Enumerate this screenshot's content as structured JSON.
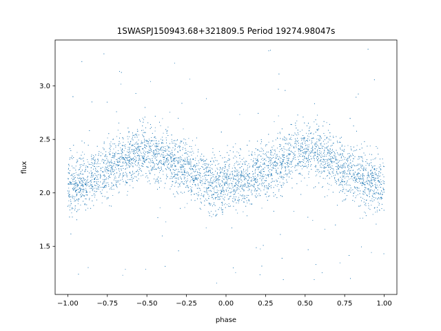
{
  "chart_data": {
    "type": "scatter",
    "title": "1SWASPJ150943.68+321809.5 Period 19274.98047s",
    "xlabel": "phase",
    "ylabel": "flux",
    "xlim": [
      -1.08,
      1.08
    ],
    "ylim": [
      1.05,
      3.43
    ],
    "xticks": [
      -1.0,
      -0.75,
      -0.5,
      -0.25,
      0.0,
      0.25,
      0.5,
      0.75,
      1.0
    ],
    "xtick_labels": [
      "−1.00",
      "−0.75",
      "−0.50",
      "−0.25",
      "0.00",
      "0.25",
      "0.50",
      "0.75",
      "1.00"
    ],
    "yticks": [
      1.5,
      2.0,
      2.5,
      3.0
    ],
    "ytick_labels": [
      "1.5",
      "2.0",
      "2.5",
      "3.0"
    ],
    "grid": false,
    "legend": "none",
    "color": "#1f77b4",
    "series": [
      {
        "x_range": [
          -1.0,
          1.0
        ],
        "model": "sinusoid",
        "mean_flux": 2.22,
        "amplitude": 0.15,
        "peak_phases": [
          -0.5,
          0.5
        ],
        "trough_phases": [
          -1.0,
          0.0,
          1.0
        ],
        "scatter_sigma": 0.13,
        "outlier_range": [
          1.15,
          3.35
        ],
        "points": [
          [
            -1.0,
            2.07
          ],
          [
            -0.875,
            2.13
          ],
          [
            -0.75,
            2.25
          ],
          [
            -0.625,
            2.35
          ],
          [
            -0.5,
            2.38
          ],
          [
            -0.375,
            2.34
          ],
          [
            -0.25,
            2.23
          ],
          [
            -0.125,
            2.12
          ],
          [
            0.0,
            2.07
          ],
          [
            0.125,
            2.13
          ],
          [
            0.25,
            2.24
          ],
          [
            0.375,
            2.34
          ],
          [
            0.5,
            2.38
          ],
          [
            0.625,
            2.34
          ],
          [
            0.75,
            2.24
          ],
          [
            0.875,
            2.13
          ],
          [
            1.0,
            2.07
          ]
        ]
      }
    ]
  }
}
